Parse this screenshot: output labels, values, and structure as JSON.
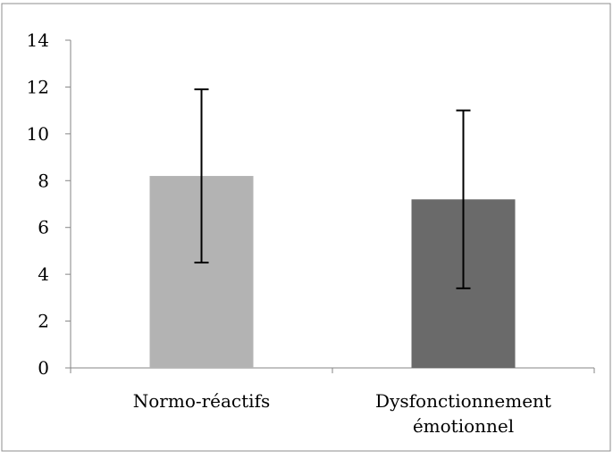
{
  "chart_data": {
    "type": "bar",
    "title": "",
    "xlabel": "",
    "ylabel": "",
    "categories": [
      "Normo-réactifs",
      "Dysfonctionnement émotionnel"
    ],
    "category_lines": [
      [
        "Normo-réactifs"
      ],
      [
        "Dysfonctionnement",
        "émotionnel"
      ]
    ],
    "values": [
      8.2,
      7.2
    ],
    "error_low": [
      4.5,
      3.4
    ],
    "error_high": [
      11.9,
      11.0
    ],
    "bar_colors": [
      "#b3b3b3",
      "#6a6a6a"
    ],
    "ylim": [
      0,
      14
    ],
    "yticks": [
      "0",
      "2",
      "4",
      "6",
      "8",
      "10",
      "12",
      "14"
    ],
    "grid": false,
    "legend": "none"
  }
}
